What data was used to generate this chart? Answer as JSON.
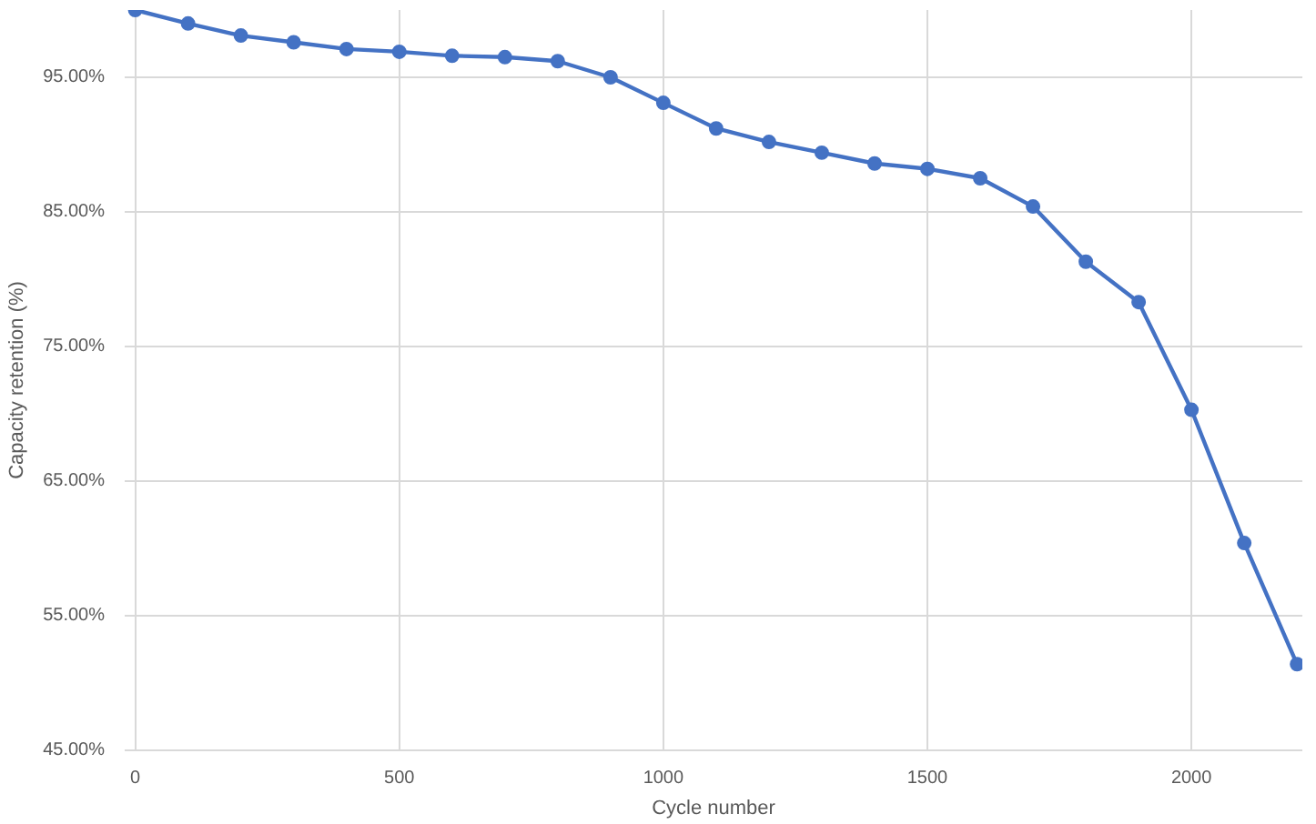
{
  "chart_data": {
    "type": "line",
    "xlabel": "Cycle number",
    "ylabel": "Capacity retention (%)",
    "x": [
      0,
      100,
      200,
      300,
      400,
      500,
      600,
      700,
      800,
      900,
      1000,
      1100,
      1200,
      1300,
      1400,
      1500,
      1600,
      1700,
      1800,
      1900,
      2000,
      2100,
      2200
    ],
    "series": [
      {
        "color": "#4472c4",
        "values": [
          100,
          99.0,
          98.1,
          97.6,
          97.1,
          96.9,
          96.6,
          96.5,
          96.2,
          95.0,
          93.1,
          91.2,
          90.2,
          89.4,
          88.6,
          88.2,
          87.5,
          85.4,
          81.3,
          78.3,
          70.3,
          60.4,
          51.4
        ]
      }
    ],
    "xlim": [
      -20,
      2210
    ],
    "ylim": [
      45,
      100
    ],
    "xticks": [
      0,
      500,
      1000,
      1500,
      2000
    ],
    "yticks": [
      {
        "value": 45,
        "label": "45.00%"
      },
      {
        "value": 55,
        "label": "55.00%"
      },
      {
        "value": 65,
        "label": "65.00%"
      },
      {
        "value": 75,
        "label": "75.00%"
      },
      {
        "value": 85,
        "label": "85.00%"
      },
      {
        "value": 95,
        "label": "95.00%"
      }
    ],
    "grid": true,
    "marker": "circle",
    "line_style": "solid"
  }
}
